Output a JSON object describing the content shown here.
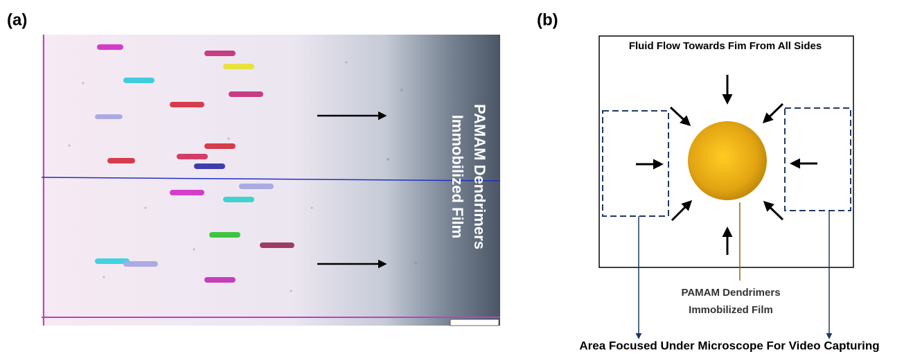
{
  "panel_a": {
    "label": "(a)",
    "film_label_lines": [
      "PAMAM Dendrimers",
      "Immobilized Film"
    ]
  },
  "panel_b": {
    "label": "(b)",
    "title": "Fluid Flow Towards Fim From All Sides",
    "film_label_lines": [
      "PAMAM Dendrimers",
      "Immobilized Film"
    ],
    "caption": "Area Focused Under Microscope For Video Capturing"
  }
}
